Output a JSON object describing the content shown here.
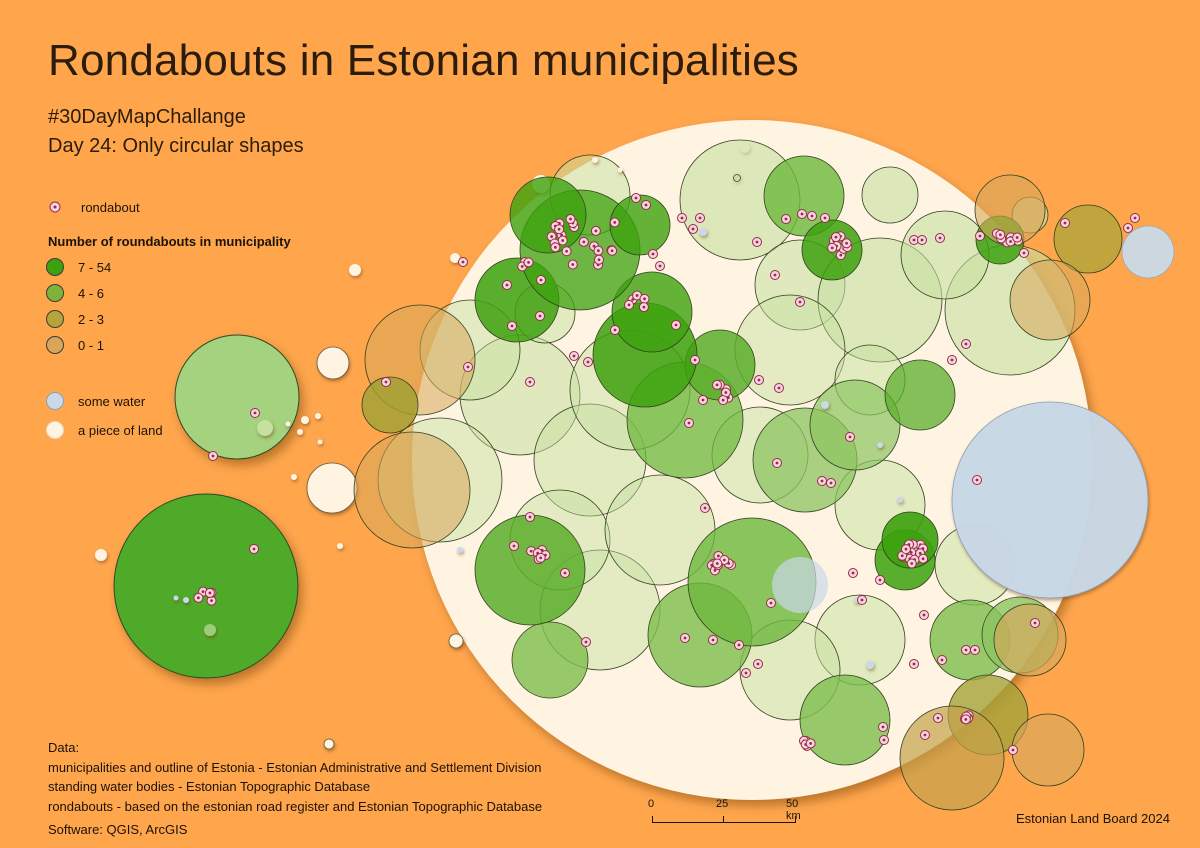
{
  "title": "Rondabouts in Estonian municipalities",
  "subtitle_line1": "#30DayMapChallange",
  "subtitle_line2": "Day 24: Only circular shapes",
  "legend": {
    "rondabout_label": "rondabout",
    "count_heading": "Number of roundabouts in municipality",
    "classes": [
      {
        "label": "7 - 54",
        "color": "#3DA10E"
      },
      {
        "label": "4 - 6",
        "color": "#7FB23A"
      },
      {
        "label": "2 - 3",
        "color": "#B5A43C"
      },
      {
        "label": "0 - 1",
        "color": "#D7A65A"
      }
    ],
    "water_label": "some water",
    "land_label": "a piece of land"
  },
  "colors": {
    "background": "#FFA64D",
    "land": "#FEF4E1",
    "water": "#C9D9E8",
    "rondabout_dot": "#9C2A4A",
    "class_7_54": "#3DA10E",
    "class_4_6": "#7FB23A",
    "class_2_3": "#B5A43C",
    "class_0_1": "#D7A65A"
  },
  "sources": {
    "heading": "Data:",
    "line1": "municipalities and outline of Estonia -  Estonian Administrative and Settlement Division",
    "line2": "standing water bodies -  Estonian Topographic Database",
    "line3": "rondabouts -  based on the estonian road register and Estonian Topographic Database"
  },
  "software": "Software: QGIS, ArcGIS",
  "credit": "Estonian Land Board 2024",
  "scale_bar": {
    "ticks": [
      "0",
      "25",
      "50 km"
    ]
  }
}
